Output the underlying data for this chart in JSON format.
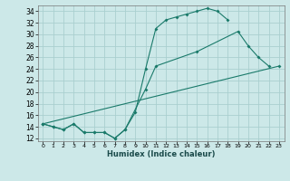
{
  "xlabel": "Humidex (Indice chaleur)",
  "bg_color": "#cce8e8",
  "grid_color": "#aacfcf",
  "line_color": "#1a7a6a",
  "xlim": [
    -0.5,
    23.5
  ],
  "ylim": [
    11.5,
    35
  ],
  "xticks": [
    0,
    1,
    2,
    3,
    4,
    5,
    6,
    7,
    8,
    9,
    10,
    11,
    12,
    13,
    14,
    15,
    16,
    17,
    18,
    19,
    20,
    21,
    22,
    23
  ],
  "yticks": [
    12,
    14,
    16,
    18,
    20,
    22,
    24,
    26,
    28,
    30,
    32,
    34
  ],
  "line1_x": [
    0,
    1,
    2,
    3,
    4,
    5,
    6,
    7,
    8,
    9,
    10,
    11,
    12,
    13,
    14,
    15,
    16,
    17,
    18
  ],
  "line1_y": [
    14.5,
    14.0,
    13.5,
    14.5,
    13.0,
    13.0,
    13.0,
    12.0,
    13.5,
    16.5,
    24.0,
    31.0,
    32.5,
    33.0,
    33.5,
    34.0,
    34.5,
    34.0,
    32.5
  ],
  "line2_x": [
    0,
    1,
    2,
    3,
    4,
    5,
    6,
    7,
    8,
    10,
    11,
    15,
    19,
    20,
    21,
    22
  ],
  "line2_y": [
    14.5,
    14.0,
    13.5,
    14.5,
    13.0,
    13.0,
    13.0,
    12.0,
    13.5,
    20.5,
    24.5,
    27.0,
    30.5,
    28.0,
    26.0,
    24.5
  ],
  "line3_x": [
    0,
    23
  ],
  "line3_y": [
    14.5,
    24.5
  ]
}
